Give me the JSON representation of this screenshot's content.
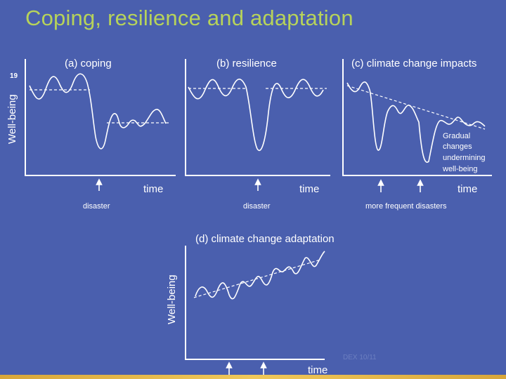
{
  "slide": {
    "title": "Coping, resilience and adaptation",
    "slide_number": "19",
    "watermark": "DEX 10/11",
    "colors": {
      "background": "#4a5fae",
      "title": "#b7d35a",
      "ink": "#ffffff"
    }
  },
  "y_axis_label": "Well-being",
  "x_axis_label": "time",
  "panels": [
    {
      "id": "a",
      "title": "(a) coping",
      "event_label": "disaster"
    },
    {
      "id": "b",
      "title": "(b) resilience",
      "event_label": "disaster"
    },
    {
      "id": "c",
      "title": "(c) climate change impacts",
      "event_label": "more frequent disasters",
      "annotation": [
        "Gradual",
        "changes",
        "undermining",
        "well-being"
      ]
    },
    {
      "id": "d",
      "title": "(d) climate change adaptation",
      "event_label": ""
    }
  ]
}
